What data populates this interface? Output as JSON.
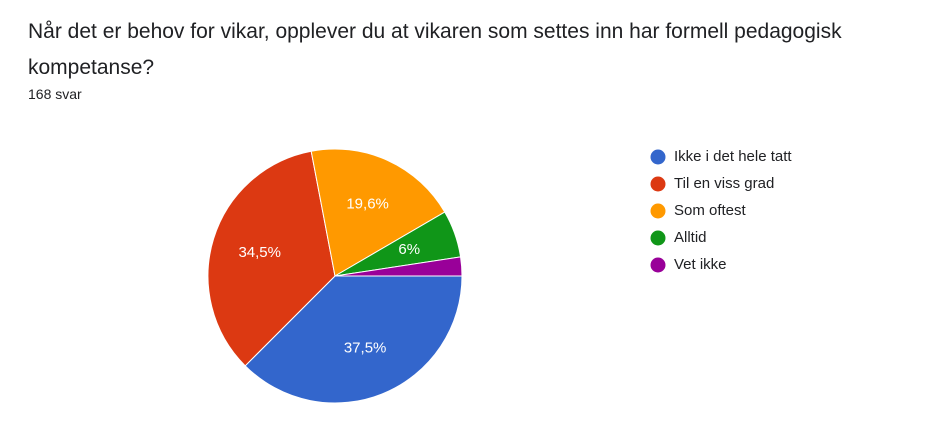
{
  "chart_data": {
    "type": "pie",
    "title": "Når det er behov for vikar, opplever du at vikaren som settes inn har formell pedagogisk kompetanse?",
    "subtitle": "168 svar",
    "categories": [
      "Ikke i det hele tatt",
      "Til en viss grad",
      "Som oftest",
      "Alltid",
      "Vet ikke"
    ],
    "values": [
      37.5,
      34.5,
      19.6,
      6,
      2.4
    ],
    "value_labels": [
      "37,5%",
      "34,5%",
      "19,6%",
      "6%",
      null
    ],
    "colors": [
      "#3366cc",
      "#dc3912",
      "#ff9900",
      "#109618",
      "#990099"
    ],
    "legend": "right"
  }
}
